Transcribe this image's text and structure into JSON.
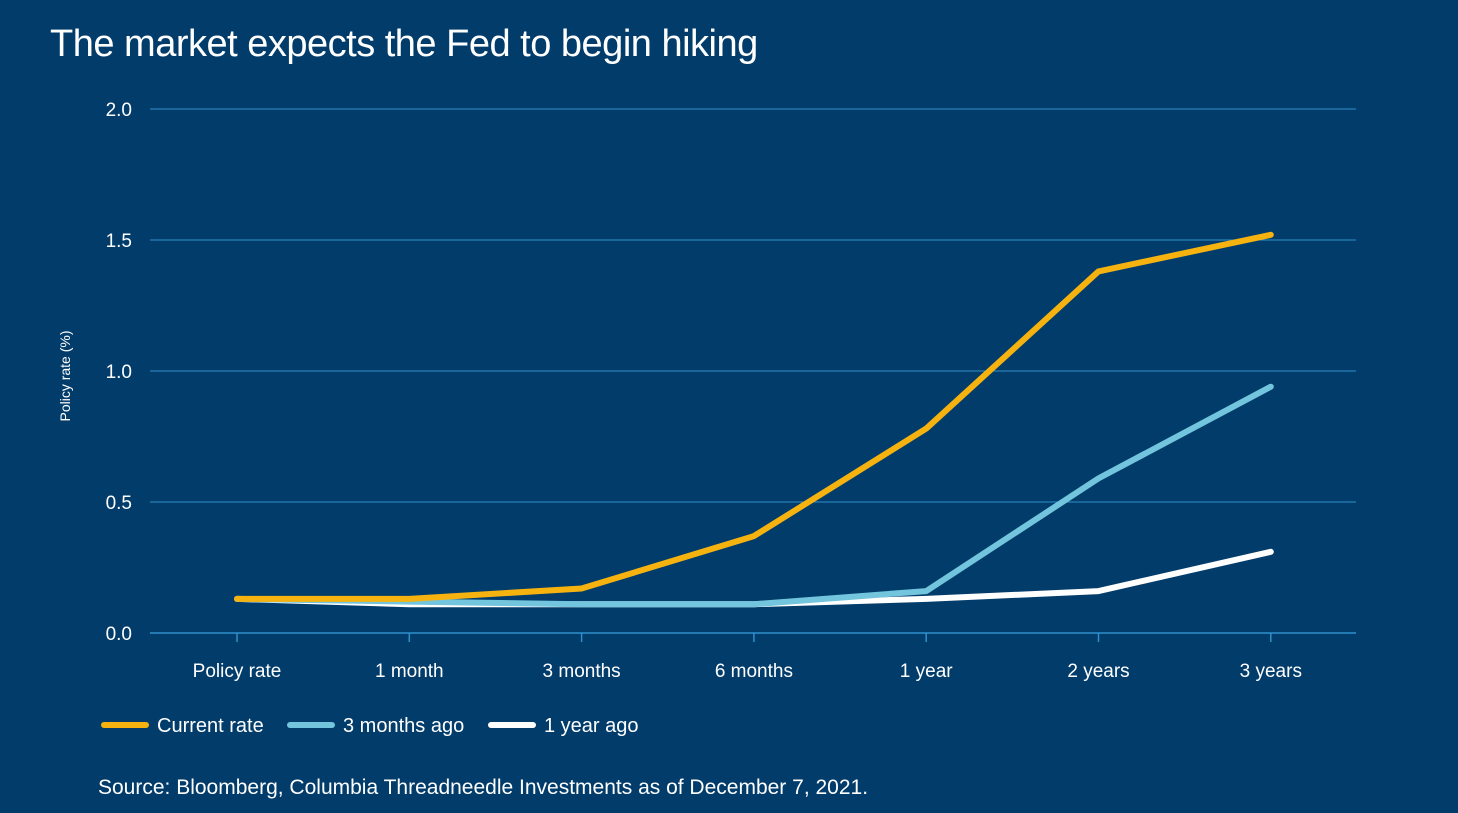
{
  "chart_data": {
    "type": "line",
    "title": "The market expects the Fed to begin hiking",
    "xlabel": "",
    "ylabel": "Policy rate (%)",
    "categories": [
      "Policy rate",
      "1 month",
      "3 months",
      "6 months",
      "1 year",
      "2 years",
      "3 years"
    ],
    "ylim": [
      0,
      2.0
    ],
    "yticks": [
      "0.0",
      "0.5",
      "1.0",
      "1.5",
      "2.0"
    ],
    "grid": true,
    "legend_position": "bottom-left",
    "series": [
      {
        "name": "Current rate",
        "color": "#f6b30f",
        "values": [
          0.13,
          0.13,
          0.17,
          0.37,
          0.78,
          1.38,
          1.52
        ]
      },
      {
        "name": "3 months ago",
        "color": "#72c5dc",
        "values": [
          0.13,
          0.12,
          0.11,
          0.11,
          0.16,
          0.59,
          0.94
        ]
      },
      {
        "name": "1 year ago",
        "color": "#ffffff",
        "values": [
          0.13,
          0.11,
          0.11,
          0.11,
          0.13,
          0.16,
          0.31
        ]
      }
    ],
    "source": "Source: Bloomberg, Columbia Threadneedle Investments as of December 7, 2021."
  },
  "colors": {
    "background": "#023c6b",
    "gridline": "#2f8fc9",
    "axis": "#2f8fc9",
    "text": "#ffffff"
  }
}
